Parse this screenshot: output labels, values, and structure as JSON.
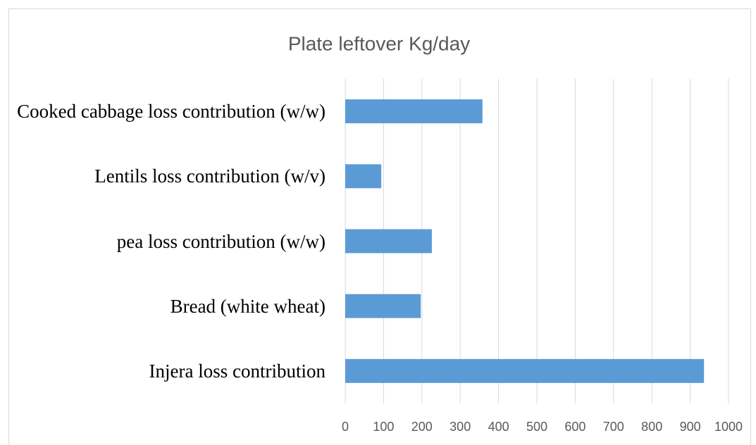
{
  "chart_data": {
    "type": "bar",
    "orientation": "horizontal",
    "title": "Plate leftover Kg/day",
    "categories": [
      "Cooked cabbage loss contribution (w/w)",
      "Lentils loss contribution (w/v)",
      "pea loss contribution (w/w)",
      "Bread (white wheat)",
      "Injera loss contribution"
    ],
    "values": [
      358,
      94,
      226,
      197,
      936
    ],
    "color": "#5b9bd5",
    "xlim": [
      0,
      1000
    ],
    "xticks": [
      0,
      100,
      200,
      300,
      400,
      500,
      600,
      700,
      800,
      900,
      1000
    ],
    "grid": true
  }
}
